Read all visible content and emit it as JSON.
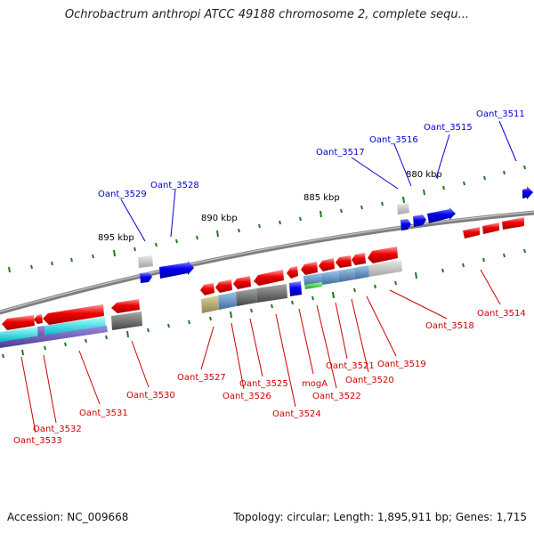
{
  "title": "Ochrobactrum anthropi ATCC 49188 chromosome 2, complete sequ...",
  "footer": {
    "accession": "Accession: NC_009668",
    "summary": "Topology: circular; Length: 1,895,911 bp; Genes: 1,715"
  },
  "colors": {
    "forward_label": "#0000cc",
    "reverse_label": "#cc0000",
    "backbone": "#7f7f7f",
    "tick": "#227722",
    "forward_gene": "#0000ee",
    "reverse_gene": "#ee0000"
  },
  "scale_labels": [
    "880 kbp",
    "885 kbp",
    "890 kbp",
    "895 kbp"
  ],
  "forward_labels": [
    "Oant_3511",
    "Oant_3515",
    "Oant_3516",
    "Oant_3517",
    "Oant_3528",
    "Oant_3529"
  ],
  "reverse_labels": [
    "Oant_3514",
    "Oant_3518",
    "Oant_3519",
    "Oant_3520",
    "Oant_3521",
    "Oant_3522",
    "mogA",
    "Oant_3524",
    "Oant_3525",
    "Oant_3526",
    "Oant_3527",
    "Oant_3530",
    "Oant_3531",
    "Oant_3532",
    "Oant_3533"
  ]
}
